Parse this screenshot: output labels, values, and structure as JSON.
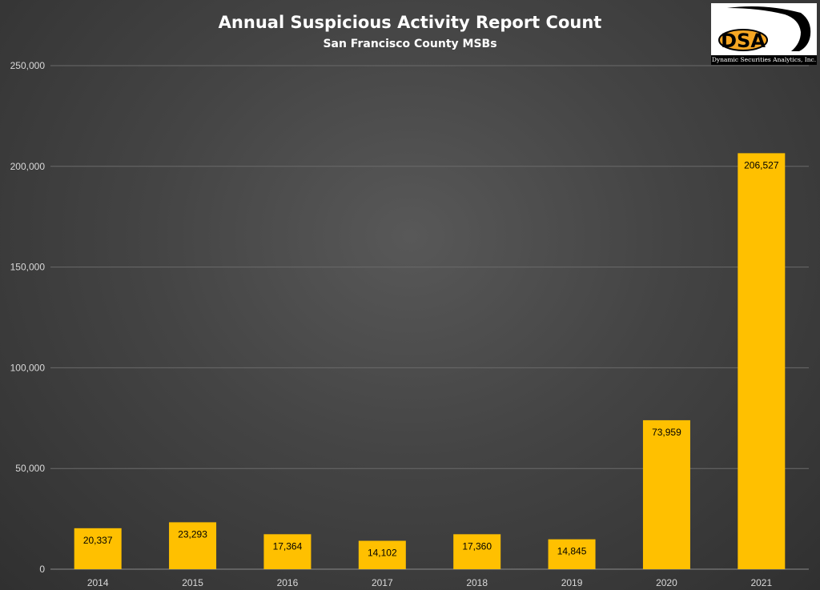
{
  "chart_data": {
    "type": "bar",
    "title": "Annual Suspicious Activity Report Count",
    "subtitle": "San Francisco County MSBs",
    "categories": [
      "2014",
      "2015",
      "2016",
      "2017",
      "2018",
      "2019",
      "2020",
      "2021"
    ],
    "values": [
      20337,
      23293,
      17364,
      14102,
      17360,
      14845,
      73959,
      206527
    ],
    "value_labels": [
      "20,337",
      "23,293",
      "17,364",
      "14,102",
      "17,360",
      "14,845",
      "73,959",
      "206,527"
    ],
    "ylim": [
      0,
      250000
    ],
    "yticks": [
      0,
      50000,
      100000,
      150000,
      200000,
      250000
    ],
    "ytick_labels": [
      "0",
      "50,000",
      "100,000",
      "150,000",
      "200,000",
      "250,000"
    ],
    "xlabel": "",
    "ylabel": "",
    "grid": true,
    "legend": "none",
    "colors": {
      "bar": "#FFC000",
      "background": "#474747",
      "text": "#ffffff",
      "tick_text": "#d9d9d9",
      "data_label": "#000000",
      "grid": "#6a6a6a"
    }
  },
  "logo": {
    "mark": "DSA",
    "caption": "Dynamic Securities Analytics, Inc."
  }
}
